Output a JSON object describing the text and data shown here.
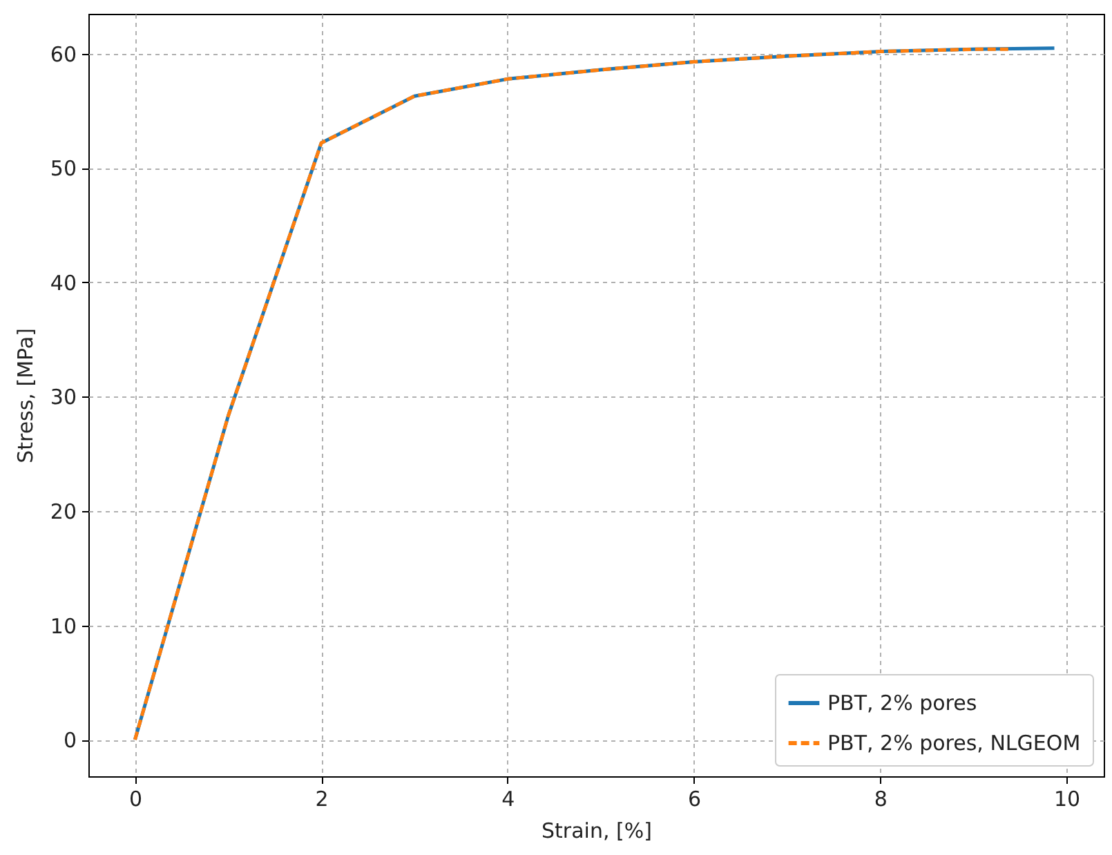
{
  "chart_data": {
    "type": "line",
    "xlabel": "Strain, [%]",
    "ylabel": "Stress, [MPa]",
    "xlim": [
      -0.5,
      10.4
    ],
    "xticks": [
      0,
      2,
      4,
      6,
      8,
      10
    ],
    "ylim": [
      -3.2,
      63.5
    ],
    "yticks": [
      0,
      10,
      20,
      30,
      40,
      50,
      60
    ],
    "grid": true,
    "legend": "bottom right",
    "series": [
      {
        "name": "PBT, 2% pores",
        "color": "#1f77b4",
        "line_style": "solid",
        "x": [
          0,
          1,
          2,
          3,
          4,
          5,
          6,
          7,
          8,
          9,
          9.87
        ],
        "values": [
          0,
          28.3,
          52.2,
          56.3,
          57.8,
          58.6,
          59.3,
          59.8,
          60.2,
          60.4,
          60.5
        ]
      },
      {
        "name": "PBT, 2% pores, NLGEOM",
        "color": "#ff7f0e",
        "line_style": "dashed",
        "x": [
          0,
          1,
          2,
          3,
          4,
          5,
          6,
          7,
          8,
          9,
          9.4
        ],
        "values": [
          0,
          28.3,
          52.2,
          56.3,
          57.8,
          58.6,
          59.3,
          59.8,
          60.2,
          60.4,
          60.4
        ]
      }
    ]
  }
}
